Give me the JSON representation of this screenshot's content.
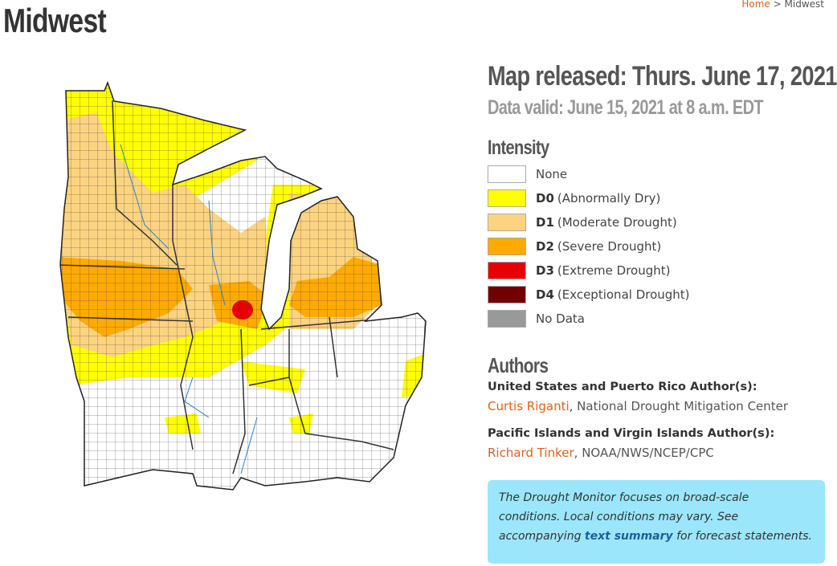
{
  "breadcrumb": {
    "home": "Home",
    "separator": ">",
    "current": "Midwest"
  },
  "title": "Midwest",
  "map_released": "Map released: Thurs. June 17, 2021",
  "data_valid": "Data valid: June 15, 2021 at 8 a.m. EDT",
  "legend": {
    "title": "Intensity",
    "items": [
      {
        "label": "None",
        "color": "#ffffff"
      },
      {
        "code": "D0",
        "label": "(Abnormally Dry)",
        "color": "#ffff00"
      },
      {
        "code": "D1",
        "label": "(Moderate Drought)",
        "color": "#fcd37f"
      },
      {
        "code": "D2",
        "label": "(Severe Drought)",
        "color": "#ffaa00"
      },
      {
        "code": "D3",
        "label": "(Extreme Drought)",
        "color": "#e60000"
      },
      {
        "code": "D4",
        "label": "(Exceptional Drought)",
        "color": "#730000"
      },
      {
        "label": "No Data",
        "color": "#999999"
      }
    ]
  },
  "authors": {
    "title": "Authors",
    "groups": [
      {
        "heading": "United States and Puerto Rico Author(s):",
        "name": "Curtis Riganti",
        "affiliation": ", National Drought Mitigation Center"
      },
      {
        "heading": "Pacific Islands and Virgin Islands Author(s):",
        "name": "Richard Tinker",
        "affiliation": ", NOAA/NWS/NCEP/CPC"
      }
    ]
  },
  "note": {
    "text_before": "The Drought Monitor focuses on broad-scale conditions. Local conditions may vary. See accompanying ",
    "link": "text summary",
    "text_after": " for forecast statements."
  }
}
